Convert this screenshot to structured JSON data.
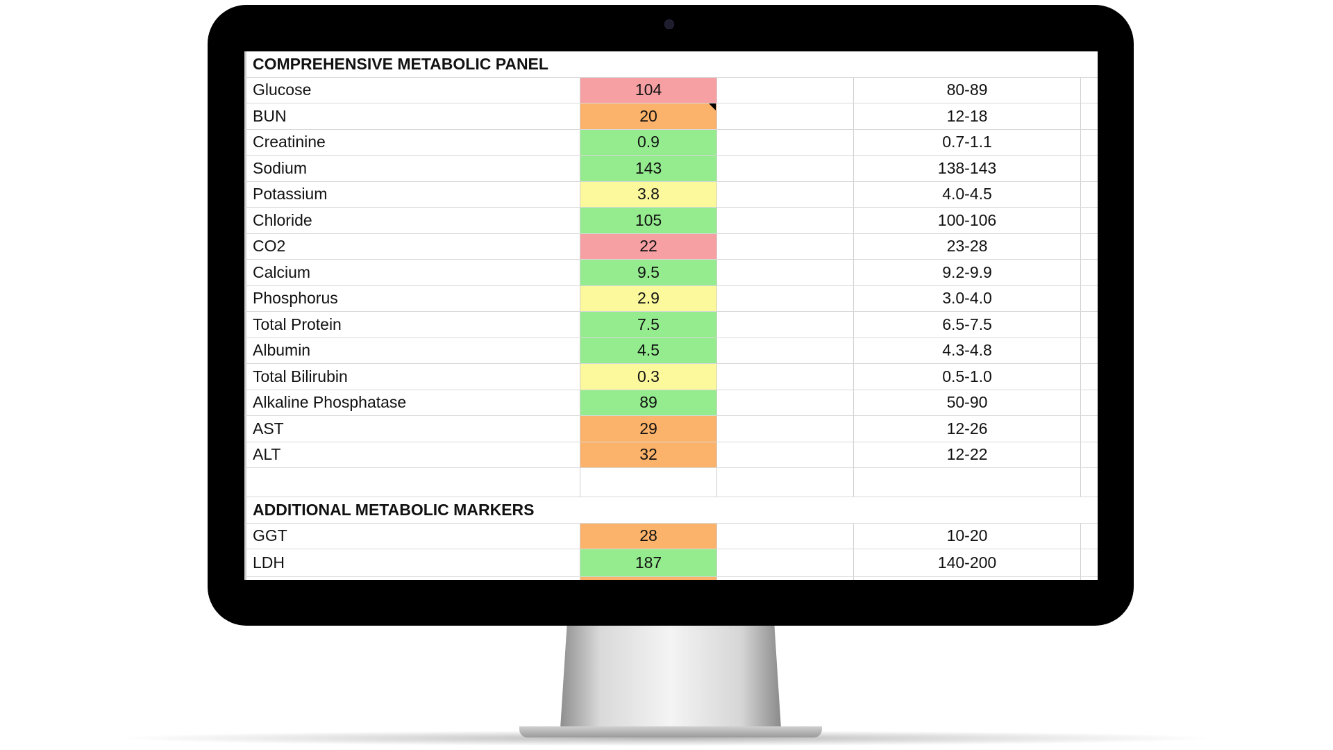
{
  "colors": {
    "red": "#f6a0a4",
    "orange": "#fbb26a",
    "green": "#94ec8f",
    "yellow": "#fbf99c"
  },
  "sections": [
    {
      "title": "COMPREHENSIVE METABOLIC PANEL",
      "rows": [
        {
          "name": "Glucose",
          "value": "104",
          "range": "80-89",
          "status": "red"
        },
        {
          "name": "BUN",
          "value": "20",
          "range": "12-18",
          "status": "orange",
          "comment": true
        },
        {
          "name": "Creatinine",
          "value": "0.9",
          "range": "0.7-1.1",
          "status": "green"
        },
        {
          "name": "Sodium",
          "value": "143",
          "range": "138-143",
          "status": "green"
        },
        {
          "name": "Potassium",
          "value": "3.8",
          "range": "4.0-4.5",
          "status": "yellow"
        },
        {
          "name": "Chloride",
          "value": "105",
          "range": "100-106",
          "status": "green"
        },
        {
          "name": "CO2",
          "value": "22",
          "range": "23-28",
          "status": "red"
        },
        {
          "name": "Calcium",
          "value": "9.5",
          "range": "9.2-9.9",
          "status": "green"
        },
        {
          "name": "Phosphorus",
          "value": "2.9",
          "range": "3.0-4.0",
          "status": "yellow"
        },
        {
          "name": "Total Protein",
          "value": "7.5",
          "range": "6.5-7.5",
          "status": "green"
        },
        {
          "name": "Albumin",
          "value": "4.5",
          "range": "4.3-4.8",
          "status": "green"
        },
        {
          "name": "Total Bilirubin",
          "value": "0.3",
          "range": "0.5-1.0",
          "status": "yellow"
        },
        {
          "name": "Alkaline Phosphatase",
          "value": "89",
          "range": "50-90",
          "status": "green"
        },
        {
          "name": "AST",
          "value": "29",
          "range": "12-26",
          "status": "orange"
        },
        {
          "name": "ALT",
          "value": "32",
          "range": "12-22",
          "status": "orange"
        }
      ]
    },
    {
      "title": "ADDITIONAL METABOLIC MARKERS",
      "rows": [
        {
          "name": "GGT",
          "value": "28",
          "range": "10-20",
          "status": "orange"
        },
        {
          "name": "LDH",
          "value": "187",
          "range": "140-200",
          "status": "green"
        },
        {
          "name": "",
          "value": "",
          "range": "",
          "status": "orange"
        }
      ]
    }
  ]
}
